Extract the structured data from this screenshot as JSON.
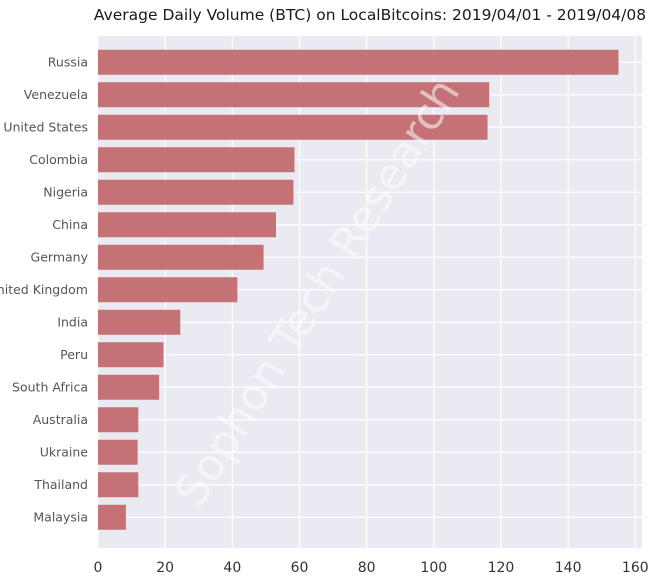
{
  "chart_data": {
    "type": "bar",
    "orientation": "horizontal",
    "title": "Average Daily Volume (BTC) on LocalBitcoins: 2019/04/01 - 2019/04/08",
    "xlabel": "",
    "ylabel": "",
    "categories": [
      "Russia",
      "Venezuela",
      "United States",
      "Colombia",
      "Nigeria",
      "China",
      "Germany",
      "United Kingdom",
      "India",
      "Peru",
      "South Africa",
      "Australia",
      "Ukraine",
      "Thailand",
      "Malaysia"
    ],
    "values": [
      155,
      116.5,
      116,
      58.5,
      58.2,
      53,
      49.3,
      41.5,
      24.5,
      19.5,
      18.2,
      12,
      11.8,
      12,
      8.3
    ],
    "xlim": [
      0,
      162
    ],
    "xticks": [
      0,
      20,
      40,
      60,
      80,
      100,
      120,
      140,
      160
    ],
    "grid": true,
    "bar_color": "#c0676b",
    "background_color": "#eaeaf2",
    "watermark": "Sophon Tech Research"
  }
}
